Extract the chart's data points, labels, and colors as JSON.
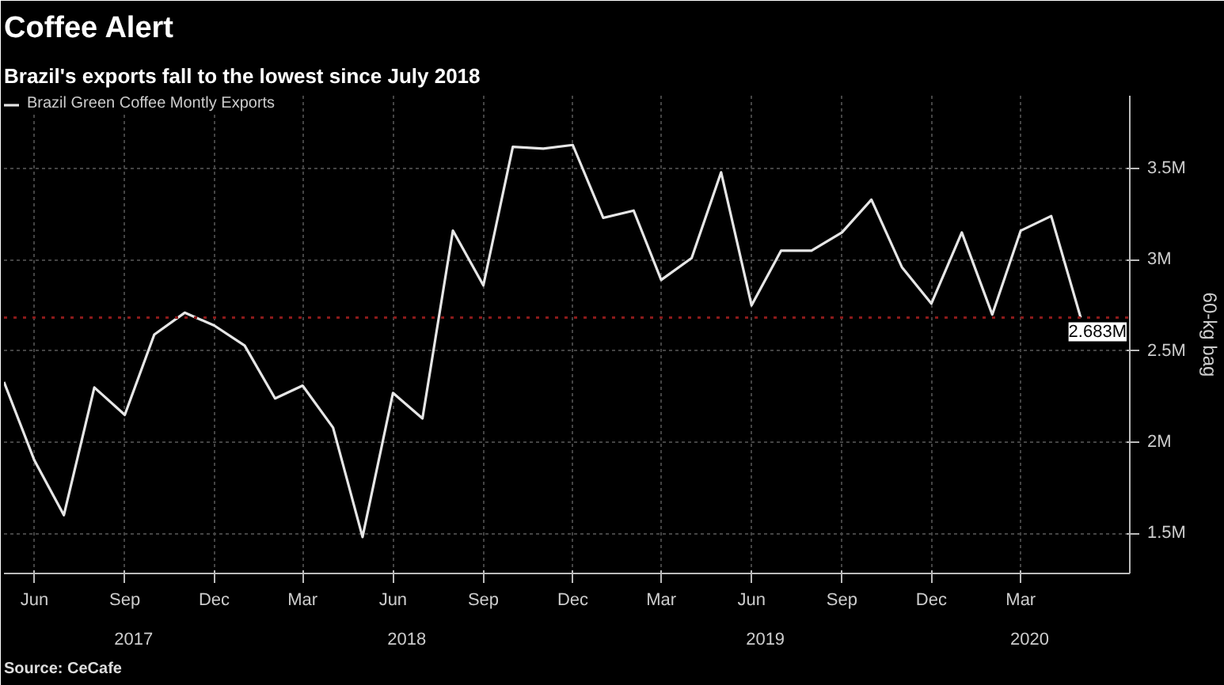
{
  "chart_data": {
    "type": "line",
    "title": "Coffee Alert",
    "subtitle": "Brazil's exports fall to the lowest since July 2018",
    "ylabel": "60-kg bag",
    "x": [
      "2017-05",
      "2017-06",
      "2017-07",
      "2017-08",
      "2017-09",
      "2017-10",
      "2017-11",
      "2017-12",
      "2018-01",
      "2018-02",
      "2018-03",
      "2018-04",
      "2018-05",
      "2018-06",
      "2018-07",
      "2018-08",
      "2018-09",
      "2018-10",
      "2018-11",
      "2018-12",
      "2019-01",
      "2019-02",
      "2019-03",
      "2019-04",
      "2019-05",
      "2019-06",
      "2019-07",
      "2019-08",
      "2019-09",
      "2019-10",
      "2019-11",
      "2019-12",
      "2020-01",
      "2020-02",
      "2020-03",
      "2020-04",
      "2020-05"
    ],
    "series": [
      {
        "name": "Brazil Green Coffee Montly Exports",
        "color": "#e6e6e6",
        "values": [
          2.33,
          1.9,
          1.6,
          2.3,
          2.15,
          2.59,
          2.71,
          2.64,
          2.53,
          2.24,
          2.31,
          2.08,
          1.48,
          2.27,
          2.13,
          3.16,
          2.86,
          3.62,
          3.61,
          3.63,
          3.23,
          3.27,
          2.89,
          3.01,
          3.48,
          2.75,
          3.05,
          3.05,
          3.15,
          3.33,
          2.96,
          2.76,
          3.15,
          2.7,
          3.16,
          3.24,
          2.683
        ]
      }
    ],
    "xlim": [
      "2017-05-01",
      "2020-06-20"
    ],
    "xticks": [
      {
        "value": "2017-06",
        "label": "Jun"
      },
      {
        "value": "2017-09",
        "label": "Sep"
      },
      {
        "value": "2017-12",
        "label": "Dec"
      },
      {
        "value": "2018-03",
        "label": "Mar"
      },
      {
        "value": "2018-06",
        "label": "Jun"
      },
      {
        "value": "2018-09",
        "label": "Sep"
      },
      {
        "value": "2018-12",
        "label": "Dec"
      },
      {
        "value": "2019-03",
        "label": "Mar"
      },
      {
        "value": "2019-06",
        "label": "Jun"
      },
      {
        "value": "2019-09",
        "label": "Sep"
      },
      {
        "value": "2019-12",
        "label": "Dec"
      },
      {
        "value": "2020-03",
        "label": "Mar"
      }
    ],
    "x2lim": [
      "2017-05-01",
      "2020-06-20"
    ],
    "x2ticks": [
      {
        "value": "2017-09-10",
        "label": "2017"
      },
      {
        "value": "2018-06-15",
        "label": "2018"
      },
      {
        "value": "2019-06-15",
        "label": "2019"
      },
      {
        "value": "2020-03-10",
        "label": "2020"
      }
    ],
    "ylim": [
      1.28,
      3.9
    ],
    "yticks": [
      {
        "value": 1.5,
        "label": "1.5M"
      },
      {
        "value": 2,
        "label": "2M"
      },
      {
        "value": 2.5,
        "label": "2.5M"
      },
      {
        "value": 3,
        "label": "3M"
      },
      {
        "value": 3.5,
        "label": "3.5M"
      }
    ],
    "ref_lines": [
      {
        "axis": "y",
        "value": 2.683,
        "label": "2.683M",
        "color": "#8b1a1a",
        "line_style": "dotted"
      }
    ],
    "annotations": [
      "Source: CeCafe"
    ],
    "grid": true,
    "legend": "top left",
    "marker": "none",
    "line_style": "solid"
  }
}
